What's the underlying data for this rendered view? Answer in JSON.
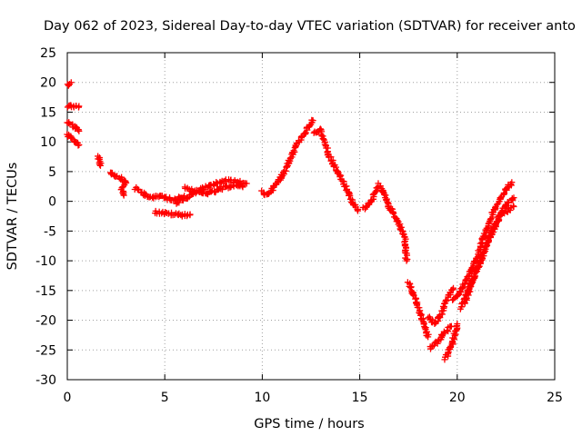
{
  "chart_data": {
    "type": "scatter",
    "title": "Day 062 of 2023, Sidereal Day-to-day VTEC variation (SDTVAR) for receiver anto",
    "xlabel": "GPS time / hours",
    "ylabel": "SDTVAR / TECUs",
    "xlim": [
      0,
      25
    ],
    "ylim": [
      -30,
      25
    ],
    "xticks": [
      "0",
      "5",
      "10",
      "15",
      "20",
      "25"
    ],
    "yticks": [
      "25",
      "20",
      "15",
      "10",
      "5",
      "0",
      "-5",
      "-10",
      "-15",
      "-20",
      "-25",
      "-30"
    ],
    "grid": true,
    "marker": "+",
    "color": "#ff0000",
    "series": [
      {
        "name": "SDTVAR",
        "traces": [
          [
            [
              0.0,
              19.6
            ],
            [
              0.2,
              20.0
            ]
          ],
          [
            [
              0.0,
              16.0
            ],
            [
              0.3,
              16.0
            ],
            [
              0.6,
              16.0
            ]
          ],
          [
            [
              0.0,
              13.2
            ],
            [
              0.2,
              12.9
            ],
            [
              0.4,
              12.4
            ],
            [
              0.6,
              11.8
            ]
          ],
          [
            [
              0.0,
              11.2
            ],
            [
              0.2,
              10.6
            ],
            [
              0.4,
              10.1
            ],
            [
              0.6,
              9.5
            ]
          ],
          [
            [
              1.6,
              7.6
            ],
            [
              1.65,
              6.8
            ],
            [
              1.7,
              6.0
            ]
          ],
          [
            [
              2.2,
              5.0
            ],
            [
              2.5,
              4.3
            ],
            [
              2.8,
              3.8
            ],
            [
              3.0,
              3.3
            ],
            [
              2.8,
              2.0
            ],
            [
              2.9,
              1.0
            ]
          ],
          [
            [
              3.5,
              2.2
            ],
            [
              3.8,
              1.5
            ],
            [
              4.1,
              1.0
            ],
            [
              4.4,
              0.6
            ],
            [
              4.8,
              0.9
            ],
            [
              5.2,
              0.4
            ],
            [
              5.6,
              0.4
            ],
            [
              6.0,
              0.9
            ]
          ],
          [
            [
              4.5,
              -1.8
            ],
            [
              5.0,
              -2.0
            ],
            [
              5.5,
              -2.2
            ],
            [
              6.0,
              -2.3
            ],
            [
              6.3,
              -2.2
            ]
          ],
          [
            [
              5.6,
              -0.3
            ],
            [
              6.2,
              0.8
            ],
            [
              6.8,
              2.0
            ],
            [
              7.3,
              2.5
            ],
            [
              7.8,
              3.2
            ],
            [
              8.3,
              3.5
            ],
            [
              8.8,
              3.2
            ],
            [
              9.2,
              3.0
            ]
          ],
          [
            [
              6.0,
              2.4
            ],
            [
              6.5,
              1.6
            ],
            [
              7.0,
              1.3
            ],
            [
              7.5,
              1.6
            ],
            [
              8.0,
              2.2
            ],
            [
              8.5,
              2.7
            ],
            [
              9.0,
              2.4
            ]
          ],
          [
            [
              10.0,
              1.8
            ],
            [
              10.2,
              1.0
            ],
            [
              10.6,
              2.4
            ],
            [
              11.0,
              4.2
            ],
            [
              11.4,
              7.0
            ],
            [
              11.8,
              9.8
            ],
            [
              12.2,
              11.6
            ],
            [
              12.6,
              13.6
            ]
          ],
          [
            [
              12.6,
              11.6
            ],
            [
              13.0,
              12.0
            ],
            [
              13.4,
              8.0
            ],
            [
              13.8,
              5.2
            ],
            [
              14.2,
              3.0
            ],
            [
              14.6,
              0.0
            ],
            [
              14.9,
              -1.6
            ]
          ],
          [
            [
              15.2,
              -1.2
            ],
            [
              15.6,
              0.0
            ],
            [
              16.0,
              2.8
            ],
            [
              16.2,
              1.4
            ],
            [
              16.5,
              -0.8
            ],
            [
              16.8,
              -2.4
            ],
            [
              17.1,
              -4.4
            ],
            [
              17.3,
              -6.0
            ],
            [
              17.4,
              -10.0
            ]
          ],
          [
            [
              17.5,
              -13.6
            ],
            [
              17.8,
              -15.8
            ],
            [
              18.0,
              -18.0
            ],
            [
              18.3,
              -20.8
            ],
            [
              18.5,
              -22.8
            ]
          ],
          [
            [
              18.5,
              -19.4
            ],
            [
              18.8,
              -20.6
            ],
            [
              19.1,
              -19.6
            ],
            [
              19.5,
              -16.2
            ],
            [
              19.8,
              -14.6
            ]
          ],
          [
            [
              18.6,
              -24.6
            ],
            [
              19.0,
              -23.6
            ],
            [
              19.4,
              -22.0
            ],
            [
              19.7,
              -21.0
            ]
          ],
          [
            [
              19.4,
              -26.4
            ],
            [
              19.7,
              -24.4
            ],
            [
              20.0,
              -20.6
            ]
          ],
          [
            [
              19.8,
              -16.6
            ],
            [
              20.1,
              -15.6
            ],
            [
              20.5,
              -13.0
            ],
            [
              21.0,
              -9.4
            ],
            [
              21.5,
              -4.6
            ],
            [
              22.0,
              -0.8
            ],
            [
              22.4,
              1.4
            ],
            [
              22.8,
              3.2
            ]
          ],
          [
            [
              20.2,
              -18.0
            ],
            [
              20.6,
              -14.6
            ],
            [
              21.0,
              -11.6
            ],
            [
              21.4,
              -8.2
            ],
            [
              21.8,
              -5.0
            ],
            [
              22.2,
              -2.2
            ],
            [
              22.6,
              -1.6
            ],
            [
              22.9,
              -0.9
            ]
          ],
          [
            [
              20.4,
              -17.0
            ],
            [
              20.9,
              -12.4
            ],
            [
              21.3,
              -9.0
            ],
            [
              21.7,
              -5.8
            ],
            [
              22.1,
              -3.0
            ],
            [
              22.5,
              -0.6
            ],
            [
              22.9,
              0.6
            ]
          ]
        ]
      }
    ]
  }
}
